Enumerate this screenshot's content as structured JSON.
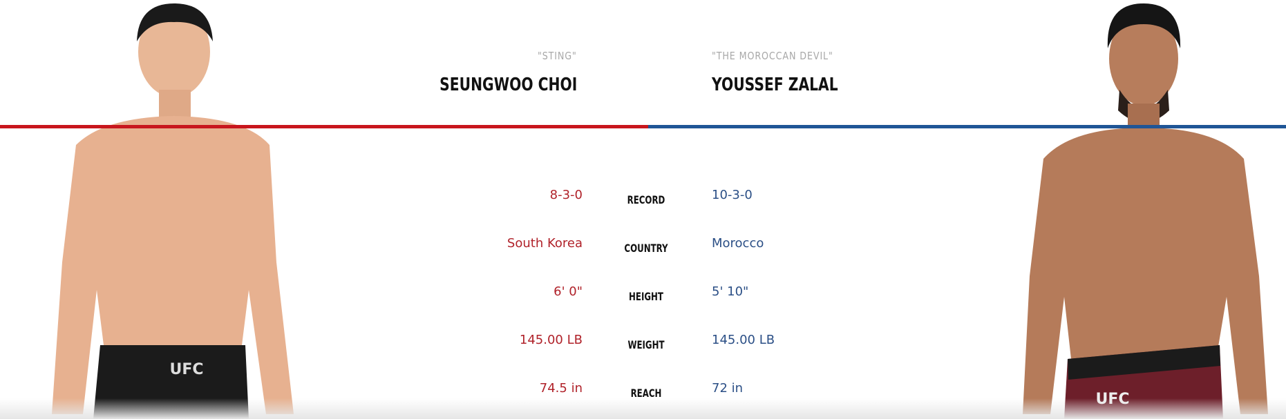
{
  "red_corner": {
    "nickname": "\"STING\"",
    "name": "SEUNGWOO CHOI",
    "color": "#c8161d"
  },
  "blue_corner": {
    "nickname": "\"THE MOROCCAN DEVIL\"",
    "name": "YOUSSEF ZALAL",
    "color": "#1f5596"
  },
  "stats": [
    {
      "label": "RECORD",
      "red": "8-3-0",
      "blue": "10-3-0"
    },
    {
      "label": "COUNTRY",
      "red": "South Korea",
      "blue": "Morocco"
    },
    {
      "label": "HEIGHT",
      "red": "6' 0\"",
      "blue": "5' 10\""
    },
    {
      "label": "WEIGHT",
      "red": "145.00 LB",
      "blue": "145.00 LB"
    },
    {
      "label": "REACH",
      "red": "74.5 in",
      "blue": "72 in"
    }
  ],
  "shorts_logo": "UFC"
}
